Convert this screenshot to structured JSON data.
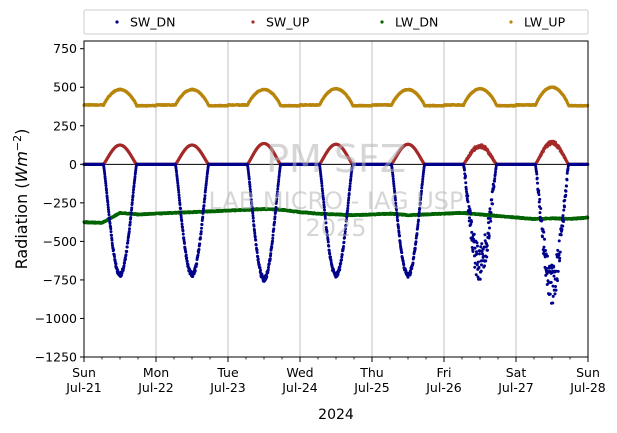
{
  "chart_data": {
    "type": "scatter",
    "title": "",
    "year_label": "2024",
    "ylabel_prefix": "Radiation (",
    "ylabel_unit": "Wm",
    "ylabel_exp": "−2",
    "ylabel_suffix": ")",
    "ylim": [
      -1250,
      800
    ],
    "yticks": [
      -1250,
      -1000,
      -750,
      -500,
      -250,
      0,
      250,
      500,
      750
    ],
    "ytick_labels": [
      "−1250",
      "−1000",
      "−750",
      "−500",
      "−250",
      "0",
      "250",
      "500",
      "750"
    ],
    "xlim_days": [
      "2024-07-21",
      "2024-07-28"
    ],
    "xticks": [
      {
        "day": "Sun",
        "date": "Jul-21"
      },
      {
        "day": "Mon",
        "date": "Jul-22"
      },
      {
        "day": "Tue",
        "date": "Jul-23"
      },
      {
        "day": "Wed",
        "date": "Jul-24"
      },
      {
        "day": "Thu",
        "date": "Jul-25"
      },
      {
        "day": "Fri",
        "date": "Jul-26"
      },
      {
        "day": "Sat",
        "date": "Jul-27"
      },
      {
        "day": "Sun",
        "date": "Jul-28"
      }
    ],
    "grid": "vertical at day ticks",
    "legend_placement": "top, above plot, 4 columns",
    "watermark": [
      "PM SFZ",
      "LAB MICRO - IAG USP",
      "2025"
    ],
    "series": [
      {
        "name": "SW_DN",
        "color": "#00008b",
        "night_value": 0,
        "daily_min": [
          -715,
          -715,
          -745,
          -720,
          -720,
          -650,
          -780
        ]
      },
      {
        "name": "SW_UP",
        "color": "#a52a2a",
        "night_value": 0,
        "daily_max": [
          125,
          125,
          135,
          130,
          130,
          120,
          140
        ]
      },
      {
        "name": "LW_DN",
        "color": "#006400",
        "points": [
          [
            "2024-07-21 00:00",
            -375
          ],
          [
            "2024-07-21 06:00",
            -380
          ],
          [
            "2024-07-21 12:00",
            -315
          ],
          [
            "2024-07-21 18:00",
            -325
          ],
          [
            "2024-07-22 00:00",
            -320
          ],
          [
            "2024-07-22 06:00",
            -315
          ],
          [
            "2024-07-22 12:00",
            -310
          ],
          [
            "2024-07-22 18:00",
            -305
          ],
          [
            "2024-07-23 00:00",
            -300
          ],
          [
            "2024-07-23 06:00",
            -295
          ],
          [
            "2024-07-23 12:00",
            -290
          ],
          [
            "2024-07-23 18:00",
            -295
          ],
          [
            "2024-07-24 00:00",
            -310
          ],
          [
            "2024-07-24 06:00",
            -320
          ],
          [
            "2024-07-24 12:00",
            -325
          ],
          [
            "2024-07-24 18:00",
            -330
          ],
          [
            "2024-07-25 00:00",
            -325
          ],
          [
            "2024-07-25 06:00",
            -320
          ],
          [
            "2024-07-25 12:00",
            -330
          ],
          [
            "2024-07-25 18:00",
            -325
          ],
          [
            "2024-07-26 00:00",
            -320
          ],
          [
            "2024-07-26 06:00",
            -315
          ],
          [
            "2024-07-26 12:00",
            -325
          ],
          [
            "2024-07-26 18:00",
            -335
          ],
          [
            "2024-07-27 00:00",
            -345
          ],
          [
            "2024-07-27 06:00",
            -355
          ],
          [
            "2024-07-27 12:00",
            -350
          ],
          [
            "2024-07-27 18:00",
            -355
          ],
          [
            "2024-07-28 00:00",
            -345
          ]
        ]
      },
      {
        "name": "LW_UP",
        "color": "#b8860b",
        "night_value": 380,
        "daily_max": [
          485,
          485,
          485,
          490,
          485,
          490,
          500
        ]
      }
    ]
  }
}
